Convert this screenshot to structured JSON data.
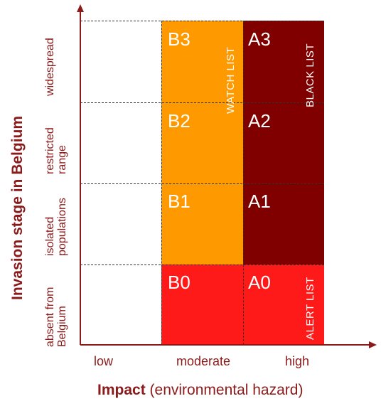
{
  "y_axis_title": "Invasion stage in Belgium",
  "x_axis_title_bold": "Impact",
  "x_axis_title_rest": " (environmental hazard)",
  "rows": [
    "widespread",
    "restricted range",
    "isolated populations",
    "absent from Belgium"
  ],
  "columns": [
    "low",
    "moderate",
    "high"
  ],
  "cells": {
    "B3": "B3",
    "B2": "B2",
    "B1": "B1",
    "B0": "B0",
    "A3": "A3",
    "A2": "A2",
    "A1": "A1",
    "A0": "A0"
  },
  "lists": {
    "watch": "WATCH LIST",
    "black": "BLACK LIST",
    "alert": "ALERT LIST"
  },
  "colors": {
    "watch": "#ff9900",
    "black": "#800000",
    "alert": "#ff1a1a",
    "text_accent": "#8b1a1a"
  }
}
